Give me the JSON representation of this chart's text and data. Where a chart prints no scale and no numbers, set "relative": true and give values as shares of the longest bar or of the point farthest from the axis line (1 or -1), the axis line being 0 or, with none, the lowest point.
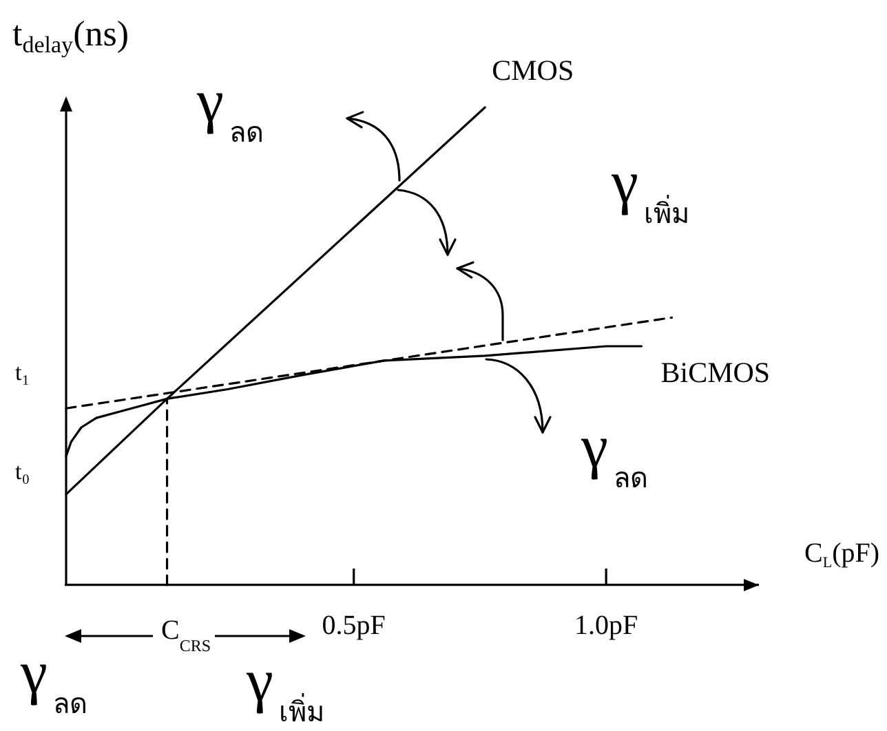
{
  "chart_data": {
    "type": "line",
    "xlabel": "C$_{L}$(pF)",
    "ylabel": "t$_{delay}$(ns)",
    "relative": true,
    "marker": "none",
    "xlim": [
      -0.07,
      1.3
    ],
    "xticks": [
      {
        "value": 0.5,
        "label": "0.5pF"
      },
      {
        "value": 1.0,
        "label": "1.0pF"
      }
    ],
    "series": [
      {
        "name": "CMOS",
        "color": "#000000",
        "line_style": "solid",
        "x": [
          -0.07,
          0.13,
          0.76
        ],
        "values": [
          0.19,
          0.39,
          1.0
        ]
      },
      {
        "name": "BiCMOS",
        "color": "#000000",
        "line_style": "solid",
        "x": [
          -0.07,
          -0.06,
          -0.04,
          -0.01,
          0.06,
          0.13,
          0.25,
          0.4,
          0.56,
          0.76,
          1.0,
          1.07
        ],
        "values": [
          0.27,
          0.3,
          0.33,
          0.35,
          0.37,
          0.39,
          0.41,
          0.44,
          0.47,
          0.48,
          0.5,
          0.5
        ]
      },
      {
        "color": "#000000",
        "line_style": "dashed",
        "x": [
          -0.07,
          1.13
        ],
        "values": [
          0.37,
          0.56
        ]
      },
      {
        "color": "#000000",
        "line_style": "dashed",
        "x": [
          0.13,
          0.13
        ],
        "values": [
          0,
          0.39
        ]
      }
    ],
    "annotations": [
      "t₁",
      "t₀",
      "γ$_{ลด}$",
      "γ$_{เพิ่ม}$",
      "γ$_{ลด}$",
      "C$_{CRS}$",
      "γ$_{ลด}$",
      "γ$_{เพิ่ม}$"
    ]
  }
}
